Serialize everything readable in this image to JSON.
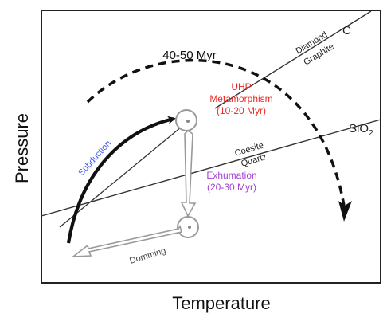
{
  "axes": {
    "xlabel": "Temperature",
    "ylabel": "Pressure"
  },
  "phase_boundaries": {
    "diamond": "Diamond",
    "graphite": "Graphite",
    "carbon": "C",
    "coesite": "Coesite",
    "quartz": "Quartz",
    "silica": "SiO",
    "silica_subscript": "2"
  },
  "path_labels": {
    "total_duration": "40-50 Myr",
    "subduction": "Subduction",
    "uhp_line1": "UHP",
    "uhp_line2": "Metamorphism",
    "uhp_line3": "(10-20 Myr)",
    "exhumation_line1": "Exhumation",
    "exhumation_line2": "(20-30 Myr)",
    "doming": "Domming"
  },
  "colors": {
    "subduction": "#4a5cf0",
    "uhp": "#ee2a24",
    "exhumation": "#a53fd6",
    "lines": "#1a1a1a",
    "pale_arrows": "#9a9a9a"
  }
}
